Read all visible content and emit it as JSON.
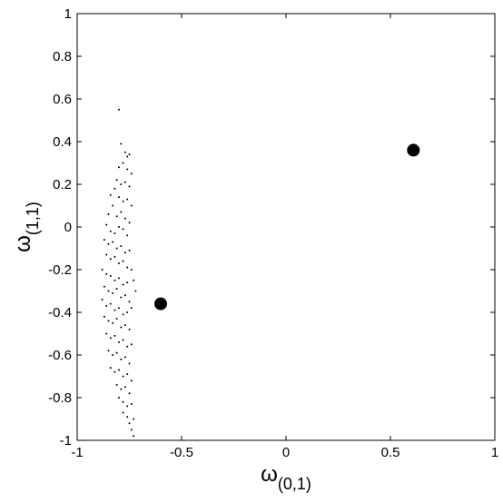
{
  "chart_data": {
    "type": "scatter",
    "x_label": {
      "symbol": "ω",
      "subscript": "(0,1)"
    },
    "y_label": {
      "symbol": "ω",
      "subscript": "(1,1)"
    },
    "xlim": [
      -1,
      1
    ],
    "xticks": [
      -1,
      -0.5,
      0,
      0.5,
      1
    ],
    "ylim": [
      -1,
      1
    ],
    "yticks": [
      -1,
      -0.8,
      -0.6,
      -0.4,
      -0.2,
      0,
      0.2,
      0.4,
      0.6,
      0.8,
      1
    ],
    "grid": false,
    "series": [
      {
        "color": "#000000",
        "marker_size": 1,
        "x": [
          -0.8,
          -0.79,
          -0.77,
          -0.76,
          -0.75,
          -0.78,
          -0.8,
          -0.76,
          -0.74,
          -0.81,
          -0.79,
          -0.77,
          -0.75,
          -0.82,
          -0.84,
          -0.8,
          -0.78,
          -0.76,
          -0.74,
          -0.83,
          -0.85,
          -0.81,
          -0.79,
          -0.77,
          -0.75,
          -0.86,
          -0.84,
          -0.82,
          -0.8,
          -0.78,
          -0.76,
          -0.87,
          -0.85,
          -0.83,
          -0.81,
          -0.79,
          -0.77,
          -0.75,
          -0.86,
          -0.84,
          -0.82,
          -0.8,
          -0.78,
          -0.76,
          -0.74,
          -0.88,
          -0.86,
          -0.84,
          -0.82,
          -0.8,
          -0.78,
          -0.76,
          -0.73,
          -0.87,
          -0.85,
          -0.83,
          -0.81,
          -0.79,
          -0.77,
          -0.75,
          -0.72,
          -0.88,
          -0.86,
          -0.84,
          -0.82,
          -0.8,
          -0.78,
          -0.76,
          -0.74,
          -0.87,
          -0.85,
          -0.83,
          -0.81,
          -0.79,
          -0.77,
          -0.75,
          -0.86,
          -0.84,
          -0.82,
          -0.8,
          -0.78,
          -0.76,
          -0.74,
          -0.85,
          -0.83,
          -0.81,
          -0.79,
          -0.77,
          -0.75,
          -0.84,
          -0.82,
          -0.8,
          -0.78,
          -0.76,
          -0.74,
          -0.81,
          -0.79,
          -0.77,
          -0.75,
          -0.8,
          -0.78,
          -0.76,
          -0.74,
          -0.78,
          -0.76,
          -0.75,
          -0.73,
          -0.74,
          -0.73
        ],
        "values": [
          0.55,
          0.39,
          0.35,
          0.33,
          0.34,
          0.3,
          0.28,
          0.27,
          0.25,
          0.22,
          0.2,
          0.21,
          0.19,
          0.18,
          0.15,
          0.14,
          0.12,
          0.13,
          0.1,
          0.1,
          0.06,
          0.05,
          0.07,
          0.04,
          0.02,
          0.01,
          -0.02,
          -0.03,
          0,
          -0.01,
          -0.04,
          -0.06,
          -0.08,
          -0.07,
          -0.1,
          -0.09,
          -0.12,
          -0.11,
          -0.13,
          -0.15,
          -0.14,
          -0.17,
          -0.16,
          -0.19,
          -0.2,
          -0.2,
          -0.22,
          -0.23,
          -0.25,
          -0.24,
          -0.27,
          -0.26,
          -0.25,
          -0.28,
          -0.3,
          -0.31,
          -0.29,
          -0.33,
          -0.32,
          -0.35,
          -0.3,
          -0.34,
          -0.37,
          -0.36,
          -0.39,
          -0.38,
          -0.41,
          -0.4,
          -0.38,
          -0.42,
          -0.44,
          -0.45,
          -0.43,
          -0.47,
          -0.46,
          -0.48,
          -0.5,
          -0.52,
          -0.51,
          -0.54,
          -0.53,
          -0.56,
          -0.55,
          -0.58,
          -0.6,
          -0.59,
          -0.62,
          -0.61,
          -0.64,
          -0.66,
          -0.68,
          -0.67,
          -0.7,
          -0.69,
          -0.72,
          -0.74,
          -0.76,
          -0.75,
          -0.78,
          -0.8,
          -0.82,
          -0.84,
          -0.83,
          -0.87,
          -0.89,
          -0.92,
          -0.9,
          -0.95,
          -0.98
        ]
      },
      {
        "color": "#000000",
        "marker_size": 7,
        "x": [
          0.61,
          -0.6
        ],
        "values": [
          0.36,
          -0.36
        ]
      }
    ]
  }
}
